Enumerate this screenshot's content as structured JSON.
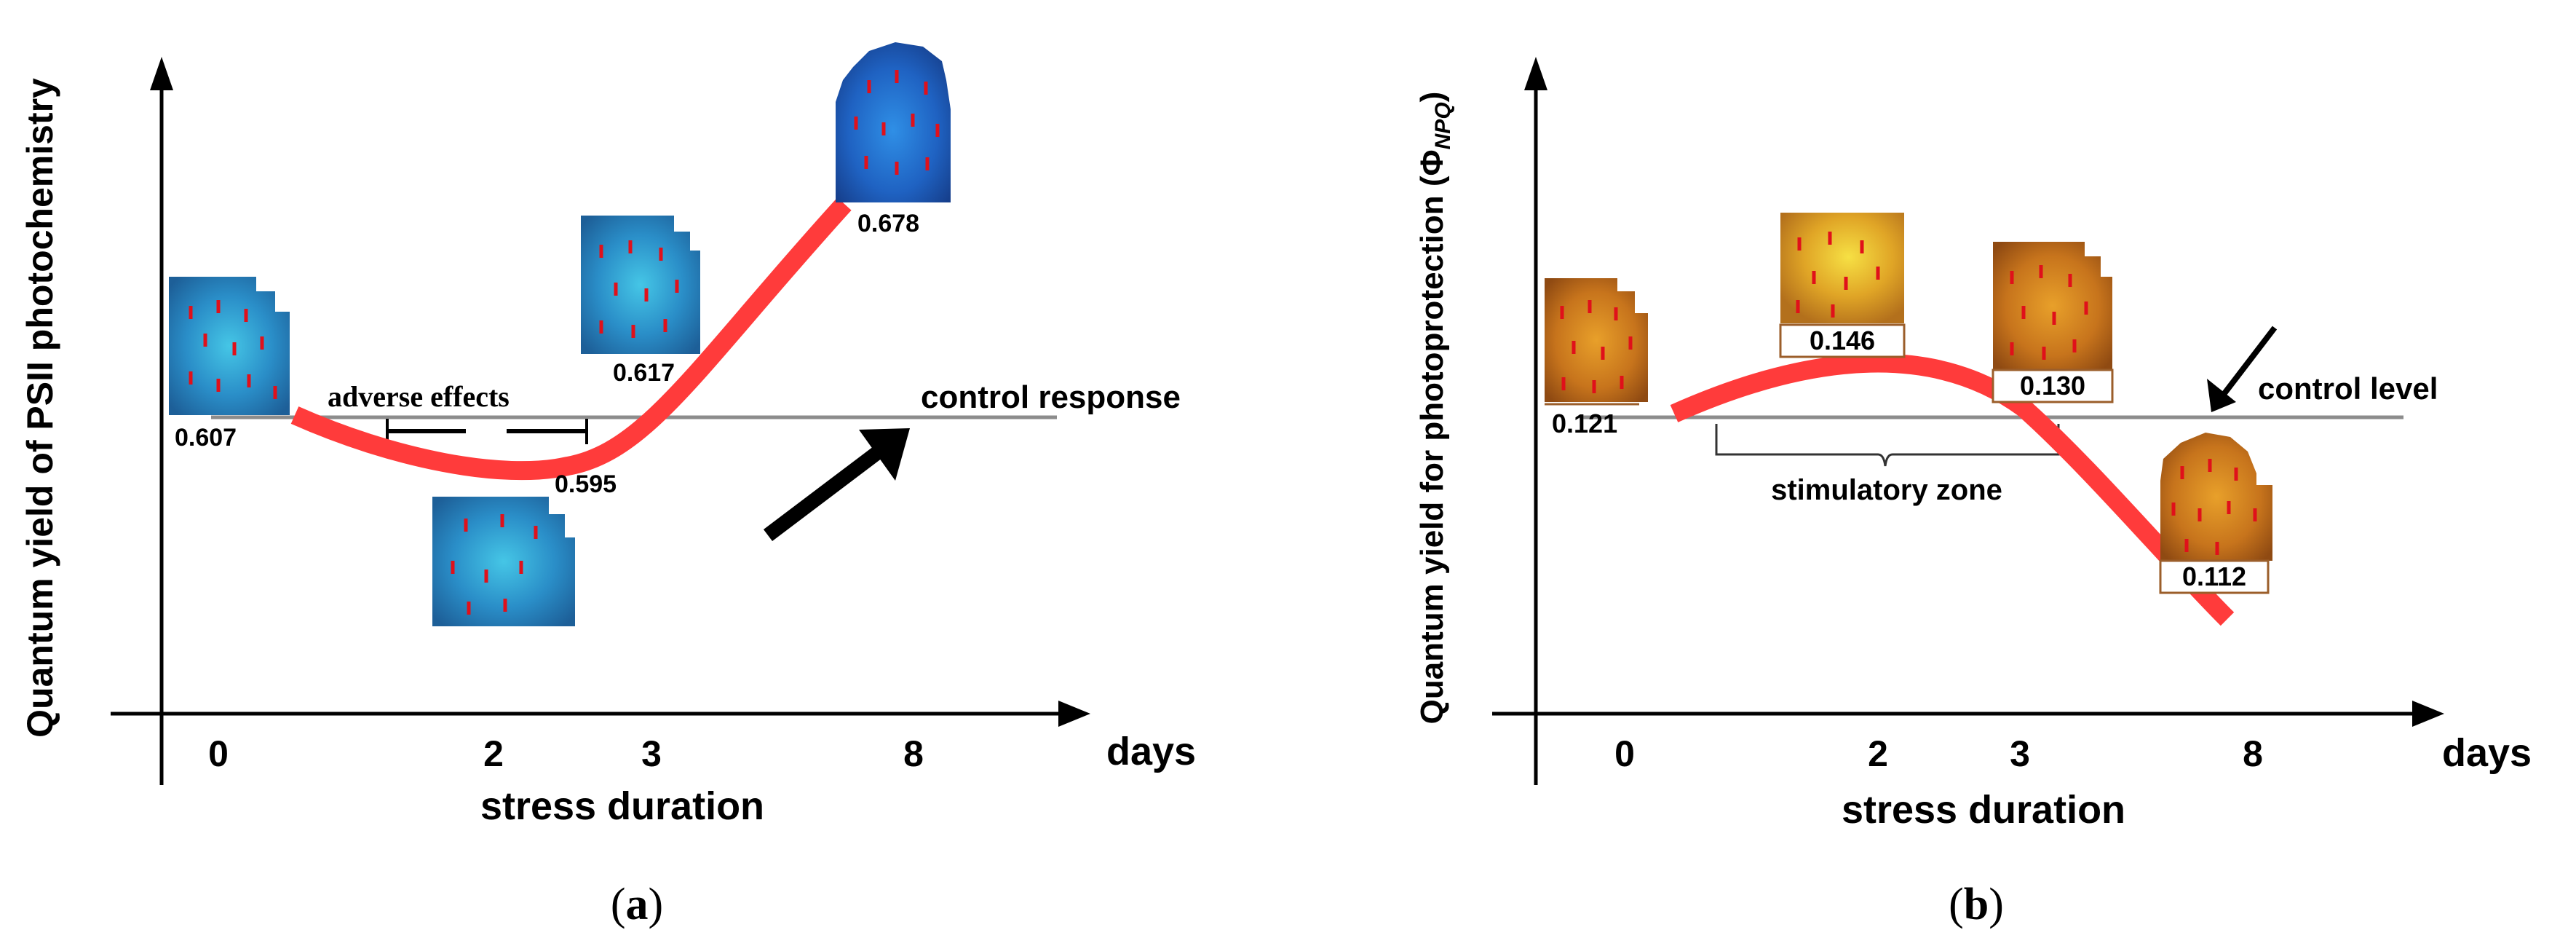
{
  "panels": [
    {
      "id": "a",
      "caption_open": "(",
      "caption_letter": "a",
      "caption_close": ")",
      "y_axis_label": "Quantum yield of PSII photochemistry",
      "x_axis_label": "stress duration",
      "x_axis_unit": "days",
      "x_ticks": [
        "0",
        "2",
        "3",
        "8"
      ],
      "reference_label": "control response",
      "bracket_label": "adverse effects",
      "curve_color": "#ff3b3b",
      "leaf_theme": "blue",
      "leaf_values": [
        "0.607",
        "0.595",
        "0.617",
        "0.678"
      ]
    },
    {
      "id": "b",
      "caption_open": "(",
      "caption_letter": "b",
      "caption_close": ")",
      "y_axis_label_main": "Quantum yield for photoprotection (Φ",
      "y_axis_label_sub": "NPQ",
      "y_axis_label_end": ")",
      "x_axis_label": "stress duration",
      "x_axis_unit": "days",
      "x_ticks": [
        "0",
        "2",
        "3",
        "8"
      ],
      "reference_label": "control level",
      "bracket_label": "stimulatory zone",
      "curve_color": "#ff3b3b",
      "leaf_theme": "orange",
      "leaf_values": [
        "0.121",
        "0.146",
        "0.130",
        "0.112"
      ]
    }
  ]
}
